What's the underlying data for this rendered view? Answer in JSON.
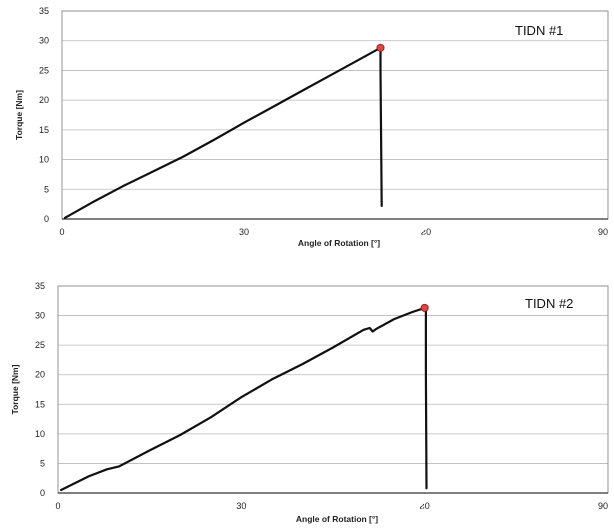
{
  "chart_data": [
    {
      "type": "line",
      "panel_label": "TIDN #1",
      "xlabel": "Angle of Rotation [°]",
      "ylabel": "Torque [Nm]",
      "xlim": [
        0,
        90
      ],
      "ylim": [
        0,
        35
      ],
      "x_ticks": [
        "0",
        "30",
        "ሪ0",
        "90"
      ],
      "y_ticks": [
        "0",
        "5",
        "10",
        "15",
        "20",
        "25",
        "30",
        "35"
      ],
      "grid": "horizontal",
      "line_color": "#111111",
      "marker_color": "#e8423f",
      "series": [
        {
          "x": [
            0.5,
            5,
            10,
            15,
            20,
            25,
            30,
            35,
            40,
            45,
            50,
            52.5,
            52.5,
            52.7
          ],
          "y": [
            0.2,
            2.8,
            5.5,
            8.0,
            10.5,
            13.3,
            16.2,
            19.0,
            21.8,
            24.6,
            27.4,
            28.8,
            25.0,
            2.2
          ]
        }
      ],
      "peak": {
        "x": 52.5,
        "y": 28.8
      }
    },
    {
      "type": "line",
      "panel_label": "TIDN #2",
      "xlabel": "Angle of Rotation [°]",
      "ylabel": "Torque [Nm]",
      "xlim": [
        0,
        90
      ],
      "ylim": [
        0,
        35
      ],
      "x_ticks": [
        "0",
        "30",
        "ሪ0",
        "90"
      ],
      "y_ticks": [
        "0",
        "5",
        "10",
        "15",
        "20",
        "25",
        "30",
        "35"
      ],
      "grid": "horizontal",
      "line_color": "#111111",
      "marker_color": "#e8423f",
      "series": [
        {
          "x": [
            0.5,
            5,
            8,
            10,
            15,
            20,
            25,
            30,
            35,
            40,
            45,
            50,
            51,
            51.5,
            52,
            55,
            58,
            60,
            60.2,
            60.2,
            60.3
          ],
          "y": [
            0.5,
            2.8,
            4.0,
            4.5,
            7.2,
            9.8,
            12.8,
            16.2,
            19.2,
            21.8,
            24.6,
            27.6,
            27.9,
            27.3,
            27.7,
            29.4,
            30.6,
            31.3,
            31.0,
            20.0,
            0.8
          ]
        }
      ],
      "peak": {
        "x": 60,
        "y": 31.3
      }
    }
  ]
}
